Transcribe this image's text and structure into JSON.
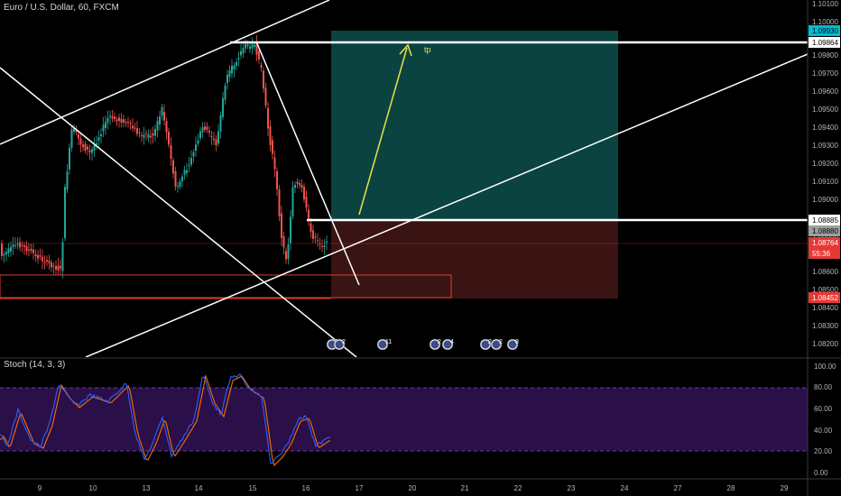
{
  "chart": {
    "title": "Euro / U.S. Dollar, 60, FXCM",
    "symbol": "Euro / U.S. Dollar",
    "interval": "60",
    "source": "FXCM",
    "price_axis_ticks": [
      "1.10100",
      "1.10000",
      "1.09800",
      "1.09700",
      "1.09600",
      "1.09500",
      "1.09400",
      "1.09300",
      "1.09200",
      "1.09100",
      "1.09000",
      "1.08800",
      "1.08600",
      "1.08500",
      "1.08400",
      "1.08300",
      "1.08200"
    ],
    "price_badges": [
      {
        "text": "1.09930",
        "bg": "#00bcd4",
        "fg": "#000000"
      },
      {
        "text": "1.09864",
        "bg": "#ffffff",
        "fg": "#000000"
      },
      {
        "text": "1.08885",
        "bg": "#ffffff",
        "fg": "#000000"
      },
      {
        "text": "1.08880",
        "bg": "#9e9e9e",
        "fg": "#000000"
      },
      {
        "text": "1.08764",
        "bg": "#e53935",
        "fg": "#ffffff"
      },
      {
        "text": "55:36",
        "bg": "#e53935",
        "fg": "#ffffff"
      },
      {
        "text": "1.08452",
        "bg": "#e53935",
        "fg": "#ffffff"
      }
    ],
    "annotation_tp": "tp",
    "time_axis_labels": [
      "9",
      "10",
      "13",
      "14",
      "15",
      "16",
      "17",
      "20",
      "21",
      "22",
      "23",
      "24",
      "27",
      "28",
      "29"
    ],
    "event_markers": [
      {
        "group": "a",
        "badges": [
          "3",
          "2"
        ]
      },
      {
        "group": "b",
        "badges": [
          "11"
        ]
      },
      {
        "group": "c",
        "badges": [
          "2",
          "4"
        ]
      },
      {
        "group": "d",
        "badges": [
          "2",
          "2",
          "8"
        ]
      }
    ],
    "colors": {
      "bull": "#26a69a",
      "bear": "#ef5350",
      "target": "#0d4b4a",
      "stop": "#5a1a1a",
      "stoch_k": "#2962ff",
      "stoch_d": "#ff6d00",
      "stoch_band": "#2b0f4a",
      "arrow": "#e6e24a"
    }
  },
  "stoch": {
    "title": "Stoch (14, 3, 3)",
    "axis_ticks": [
      "100.00",
      "80.00",
      "60.00",
      "40.00",
      "20.00",
      "0.00"
    ]
  }
}
